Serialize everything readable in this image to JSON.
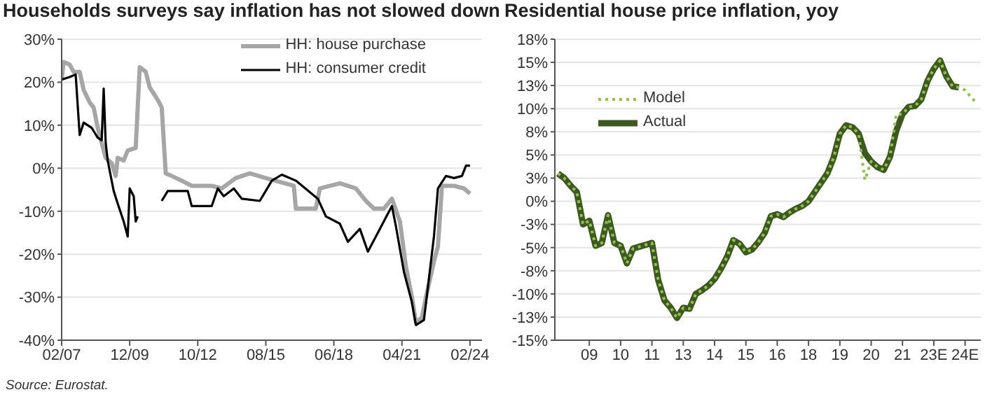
{
  "chart_data": [
    {
      "type": "line",
      "title": "Households surveys say inflation has not slowed down",
      "xlim": [
        "2007-02",
        "2024-08"
      ],
      "xticks": [
        {
          "value": "2007-02",
          "label": "02/07"
        },
        {
          "value": "2009-12",
          "label": "12/09"
        },
        {
          "value": "2012-10",
          "label": "10/12"
        },
        {
          "value": "2015-08",
          "label": "08/15"
        },
        {
          "value": "2018-06",
          "label": "06/18"
        },
        {
          "value": "2021-04",
          "label": "04/21"
        },
        {
          "value": "2024-02",
          "label": "02/24"
        }
      ],
      "ylim": [
        -40,
        30
      ],
      "yticks": [
        {
          "value": -40,
          "label": "-40%"
        },
        {
          "value": -30,
          "label": "-30%"
        },
        {
          "value": -20,
          "label": "-20%"
        },
        {
          "value": -10,
          "label": "-10%"
        },
        {
          "value": 0,
          "label": "0%"
        },
        {
          "value": 10,
          "label": "10%"
        },
        {
          "value": 20,
          "label": "20%"
        },
        {
          "value": 30,
          "label": "30%"
        }
      ],
      "grid": "y",
      "legend": "top right",
      "annotations": [
        "Source: Eurostat."
      ],
      "series": [
        {
          "name": "HH: house purchase",
          "color": "#a6a6a6",
          "x": [
            "2007-02",
            "2007-03",
            "2007-06",
            "2007-08",
            "2007-11",
            "2008-01",
            "2008-04",
            "2008-06",
            "2008-08",
            "2008-12",
            "2009-03",
            "2009-05",
            "2009-06",
            "2009-09",
            "2009-11",
            "2010-03",
            "2010-05",
            "2010-08",
            "2010-10",
            "2011-02",
            "2011-04",
            "2011-06",
            "2011-09",
            "2012-02",
            "2012-07",
            "2013-05",
            "2013-10",
            "2014-05",
            "2014-12",
            "2015-08",
            "2016-10",
            "2016-11",
            "2017-09",
            "2017-11",
            "2018-09",
            "2019-05",
            "2019-10",
            "2020-02",
            "2020-07",
            "2020-11",
            "2021-03",
            "2021-06",
            "2021-09",
            "2021-11",
            "2022-02",
            "2022-04",
            "2022-08",
            "2022-10",
            "2022-12",
            "2023-06",
            "2023-11",
            "2024-02"
          ],
          "values": [
            20.6,
            24.7,
            24.1,
            22.4,
            22.4,
            18.2,
            15.3,
            14.1,
            9.4,
            2.4,
            1.2,
            -1.8,
            2.4,
            1.8,
            4.1,
            4.7,
            23.5,
            22.4,
            18.8,
            15.9,
            14.1,
            -1.2,
            -1.8,
            -2.9,
            -4.1,
            -4.1,
            -4.7,
            -2.3,
            -1.2,
            -2.3,
            -4.1,
            -9.4,
            -9.4,
            -4.7,
            -3.5,
            -4.7,
            -7.6,
            -9.4,
            -9.4,
            -7.1,
            -12.4,
            -22.9,
            -30,
            -35.9,
            -34.7,
            -30,
            -21.7,
            -18.2,
            -4.1,
            -4.1,
            -4.7,
            -5.9
          ]
        },
        {
          "name": "HH: consumer credit",
          "color": "#000000",
          "x": [
            "2007-02",
            "2007-06",
            "2007-09",
            "2007-11",
            "2008-01",
            "2008-05",
            "2008-08",
            "2008-10",
            "2008-11",
            "2008-12",
            "2009-01",
            "2009-04",
            "2009-06",
            "2009-09",
            "2009-11",
            "2009-12",
            "2010-02",
            "2010-03",
            "2010-04",
            "2010-12",
            "2011-04",
            "2011-07",
            "2012-05",
            "2012-07",
            "2013-05",
            "2013-08",
            "2013-11",
            "2014-04",
            "2014-08",
            "2015-05",
            "2015-11",
            "2016-04",
            "2016-11",
            "2017-10",
            "2018-02",
            "2018-09",
            "2019-01",
            "2019-07",
            "2019-11",
            "2020-05",
            "2020-11",
            "2021-01",
            "2021-05",
            "2021-09",
            "2021-11",
            "2022-03",
            "2022-05",
            "2022-08",
            "2022-10",
            "2023-02",
            "2023-06",
            "2023-10",
            "2023-12",
            "2024-02"
          ],
          "values": [
            20.6,
            21.2,
            21.8,
            7.7,
            10.6,
            9.4,
            7.1,
            6.5,
            18.5,
            5.9,
            1.8,
            -5.3,
            -8.2,
            -12.4,
            -15.9,
            -4.7,
            -6.5,
            -12.4,
            -11.2,
            null,
            -7.6,
            -5.3,
            -5.3,
            -8.8,
            -8.8,
            -4.7,
            -6.5,
            -4.7,
            -7.1,
            -7.6,
            -2.9,
            -1.5,
            -2.9,
            -7.1,
            -11.2,
            -12.9,
            -17.1,
            -14.1,
            -19.4,
            -14.1,
            -8.8,
            -13.5,
            -24.1,
            -31.2,
            -36.5,
            -35.3,
            -27.6,
            -15.9,
            -4.7,
            -1.8,
            -2.3,
            -1.8,
            0.6,
            0.6
          ]
        }
      ]
    },
    {
      "type": "line",
      "title": "Residential house price inflation, yoy",
      "categories": [
        null,
        null,
        null,
        null,
        null,
        "09",
        null,
        null,
        null,
        null,
        "10",
        null,
        null,
        null,
        null,
        "11",
        null,
        null,
        null,
        null,
        "13",
        null,
        null,
        null,
        null,
        "14",
        null,
        null,
        null,
        null,
        "15",
        null,
        null,
        null,
        null,
        "16",
        null,
        null,
        null,
        null,
        "18",
        null,
        null,
        null,
        null,
        "19",
        null,
        null,
        null,
        null,
        "20",
        null,
        null,
        null,
        null,
        "21",
        null,
        null,
        null,
        null,
        "23E",
        null,
        null,
        null,
        null,
        "24E",
        null,
        null
      ],
      "ylim": [
        -15,
        17.5
      ],
      "yticks": [
        {
          "value": -15,
          "label": "-15%"
        },
        {
          "value": -12.5,
          "label": "-13%"
        },
        {
          "value": -10,
          "label": "-10%"
        },
        {
          "value": -7.5,
          "label": "-8%"
        },
        {
          "value": -5,
          "label": "-5%"
        },
        {
          "value": -2.5,
          "label": "-3%"
        },
        {
          "value": 0,
          "label": "0%"
        },
        {
          "value": 2.5,
          "label": "3%"
        },
        {
          "value": 5,
          "label": "5%"
        },
        {
          "value": 7.5,
          "label": "8%"
        },
        {
          "value": 10,
          "label": "10%"
        },
        {
          "value": 12.5,
          "label": "13%"
        },
        {
          "value": 15,
          "label": "15%"
        },
        {
          "value": 17.5,
          "label": "18%"
        }
      ],
      "grid": "y",
      "legend": "top left",
      "series": [
        {
          "name": "Model",
          "color": "#92c050",
          "line_style": "dotted",
          "values": [
            3.0,
            2.5,
            1.7,
            1.0,
            -2.5,
            -2.1,
            -4.8,
            -4.5,
            -1.5,
            -4.5,
            -4.8,
            -6.7,
            -5.1,
            -4.9,
            -4.7,
            -4.5,
            -8.5,
            -10.7,
            -11.5,
            -12.6,
            -11.5,
            -11.6,
            -10.0,
            -9.6,
            -9.1,
            -8.4,
            -7.3,
            -6.0,
            -4.2,
            -4.6,
            -5.5,
            -5.2,
            -4.4,
            -3.4,
            -1.6,
            -1.4,
            -1.7,
            -1.2,
            -0.8,
            -0.5,
            0,
            1.0,
            2.0,
            3.0,
            4.7,
            7.3,
            8.2,
            8.0,
            7.3,
            2.3,
            4.3,
            3.7,
            3.4,
            4.8,
            9.4,
            9.4,
            10.2,
            10.3,
            11.0,
            13.0,
            14.3,
            15.2,
            13.5,
            12.4,
            12.3,
            12.0,
            11.2,
            10.5
          ]
        },
        {
          "name": "Actual",
          "color": "#3d5a1e",
          "values": [
            3.0,
            2.5,
            1.7,
            1.0,
            -2.5,
            -2.1,
            -4.8,
            -4.5,
            -1.5,
            -4.5,
            -4.8,
            -6.7,
            -5.1,
            -4.9,
            -4.7,
            -4.5,
            -8.5,
            -10.7,
            -11.5,
            -12.6,
            -11.5,
            -11.6,
            -10.0,
            -9.6,
            -9.1,
            -8.4,
            -7.3,
            -6.0,
            -4.2,
            -4.6,
            -5.5,
            -5.2,
            -4.4,
            -3.4,
            -1.6,
            -1.4,
            -1.7,
            -1.2,
            -0.8,
            -0.5,
            0,
            1.0,
            2.0,
            3.0,
            4.7,
            7.3,
            8.2,
            8.0,
            7.3,
            5.2,
            4.3,
            3.7,
            3.4,
            4.8,
            7.6,
            9.4,
            10.2,
            10.3,
            11.0,
            13.0,
            14.3,
            15.2,
            13.5,
            12.4,
            12.3,
            null,
            null,
            null
          ]
        }
      ]
    }
  ]
}
